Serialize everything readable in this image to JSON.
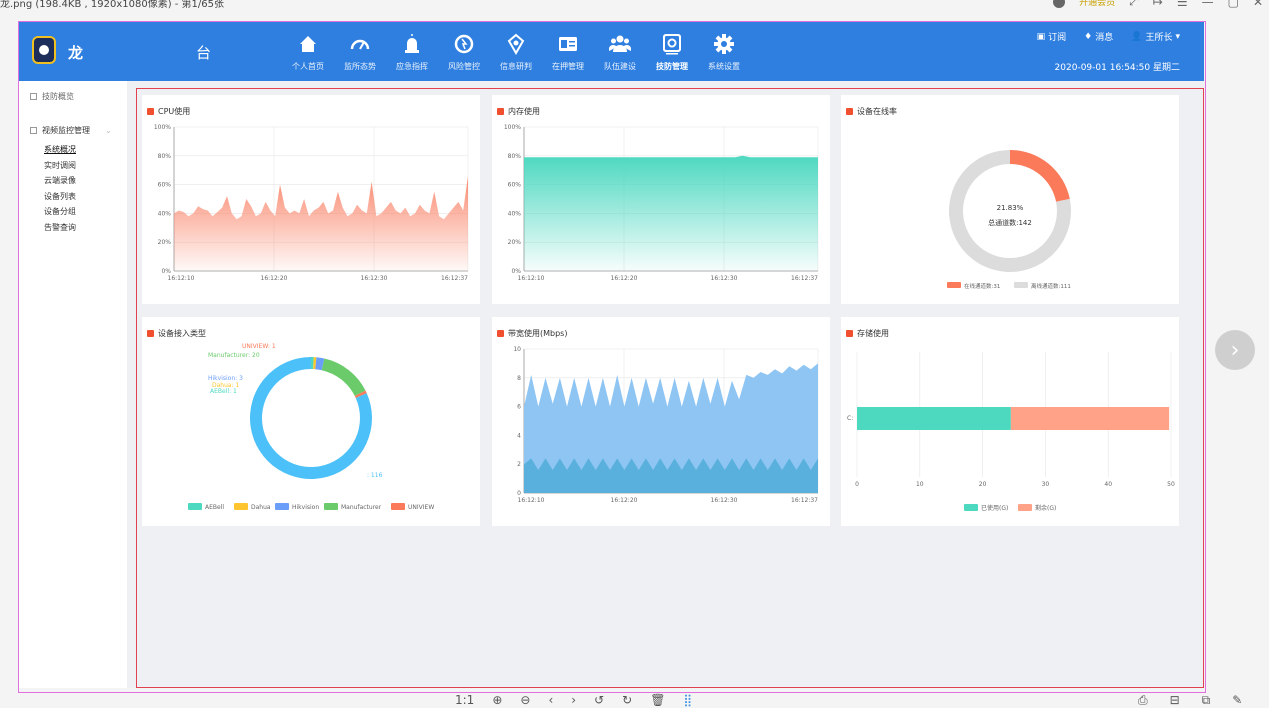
{
  "viewer": {
    "title": "龙.png (198.4KB , 1920x1080像素) - 第1/65张",
    "badge": "开通会员",
    "tr_icons": [
      "⤢",
      "↦",
      "☰",
      "—",
      "▢",
      "✕"
    ],
    "bottom_icons": [
      "1:1",
      "⊕",
      "⊖",
      "‹",
      "›",
      "↺",
      "↻",
      "🗑",
      "⣿"
    ],
    "bottom_right_icons": [
      "⎙",
      "⊟",
      "⧉",
      "✎"
    ],
    "next": "›"
  },
  "app": {
    "brand": "龙",
    "brand_suffix": "台",
    "nav": [
      {
        "label": "个人首页",
        "icon": "home-icon"
      },
      {
        "label": "监所态势",
        "icon": "gauge-icon"
      },
      {
        "label": "应急指挥",
        "icon": "alarm-icon"
      },
      {
        "label": "风险管控",
        "icon": "refresh-icon"
      },
      {
        "label": "信息研判",
        "icon": "gem-icon"
      },
      {
        "label": "在押管理",
        "icon": "id-card-icon"
      },
      {
        "label": "队伍建设",
        "icon": "team-icon"
      },
      {
        "label": "技防管理",
        "icon": "device-icon",
        "active": true
      },
      {
        "label": "系统设置",
        "icon": "gear-icon"
      }
    ],
    "subscribe": "订阅",
    "message": "消息",
    "user": "王所长",
    "datetime": "2020-09-01 16:54:50 星期二"
  },
  "sidebar": {
    "item1": "技防概览",
    "item2": "视频监控管理",
    "sub": [
      "系统概况",
      "实时调阅",
      "云端录像",
      "设备列表",
      "设备分组",
      "告警查询"
    ]
  },
  "cards": {
    "cpu": "CPU使用",
    "mem": "内存使用",
    "online": "设备在线率",
    "access": "设备接入类型",
    "bw": "带宽使用(Mbps)",
    "storage": "存储使用"
  },
  "chart_data": [
    {
      "type": "area",
      "title": "CPU使用",
      "yticks": [
        "100%",
        "80%",
        "60%",
        "40%",
        "20%",
        "0%"
      ],
      "ylim": [
        0,
        100
      ],
      "xticks": [
        "16:12:10",
        "16:12:20",
        "16:12:30",
        "16:12:37"
      ],
      "values": [
        40,
        42,
        41,
        38,
        40,
        45,
        43,
        42,
        38,
        41,
        44,
        52,
        40,
        36,
        38,
        50,
        45,
        38,
        40,
        48,
        42,
        38,
        60,
        44,
        40,
        42,
        40,
        50,
        38,
        42,
        44,
        48,
        40,
        42,
        55,
        44,
        38,
        40,
        46,
        42,
        40,
        62,
        38,
        40,
        44,
        48,
        42,
        40,
        44,
        38,
        40,
        46,
        42,
        40,
        55,
        38,
        36,
        40,
        44,
        48,
        42,
        66
      ],
      "color": "#fa8a70"
    },
    {
      "type": "area",
      "title": "内存使用",
      "yticks": [
        "100%",
        "80%",
        "60%",
        "40%",
        "20%",
        "0%"
      ],
      "ylim": [
        0,
        100
      ],
      "xticks": [
        "16:12:10",
        "16:12:20",
        "16:12:30",
        "16:12:37"
      ],
      "values": [
        79,
        79,
        79,
        79,
        79,
        79,
        79,
        79,
        79,
        79,
        79,
        79,
        79,
        79,
        79,
        79,
        79,
        79,
        79,
        79,
        79,
        79,
        79,
        79,
        79,
        79,
        79,
        79,
        79,
        80,
        79,
        79,
        79,
        79,
        79,
        79,
        79,
        79,
        79,
        79
      ],
      "color": "#4dd8c0"
    },
    {
      "type": "pie",
      "title": "设备在线率",
      "center_pct": "21.83%",
      "center_total": "总通道数:142",
      "slices": [
        {
          "name": "在线通道数:31",
          "value": 31,
          "color": "#fa7a5a"
        },
        {
          "name": "离线通道数:111",
          "value": 111,
          "color": "#dcdcdc"
        }
      ]
    },
    {
      "type": "pie",
      "title": "设备接入类型",
      "slices": [
        {
          "name": "AEBell",
          "value": 1,
          "color": "#4dd8c0",
          "label": "AEBell: 1"
        },
        {
          "name": "Dahua",
          "value": 1,
          "color": "#ffc530",
          "label": "Dahua: 1"
        },
        {
          "name": "Hikvision",
          "value": 3,
          "color": "#6a9ef8",
          "label": "Hikvision: 3"
        },
        {
          "name": "Manufacturer",
          "value": 20,
          "color": "#6bcb6b",
          "label": "Manufacturer: 20"
        },
        {
          "name": "UNIVIEW",
          "value": 1,
          "color": "#fa7a5a",
          "label": "UNIVIEW: 1"
        },
        {
          "name": "",
          "value": 116,
          "color": "#4cc0f8",
          "label": ": 116"
        }
      ]
    },
    {
      "type": "area",
      "title": "带宽使用(Mbps)",
      "yticks": [
        "10",
        "8",
        "6",
        "4",
        "2",
        "0"
      ],
      "ylim": [
        0,
        10
      ],
      "xticks": [
        "16:12:10",
        "16:12:20",
        "16:12:30",
        "16:12:37"
      ],
      "series": [
        {
          "values": [
            6,
            8.2,
            6,
            8,
            6.2,
            8,
            6,
            8,
            6,
            8,
            6,
            8,
            6,
            8.2,
            6,
            8,
            6,
            8,
            6.2,
            8,
            6,
            8,
            6,
            7.8,
            6,
            8,
            6.2,
            8,
            6,
            7.8,
            6.5,
            8.2,
            8,
            8.4,
            8.2,
            8.6,
            8.3,
            8.8,
            8.5,
            8.9,
            8.6,
            9
          ],
          "color": "#8ec5f3"
        },
        {
          "values": [
            2,
            2.4,
            1.6,
            2.4,
            1.6,
            2.4,
            1.6,
            2.4,
            1.6,
            2.4,
            1.6,
            2.4,
            1.6,
            2.4,
            1.6,
            2.4,
            1.6,
            2.4,
            1.6,
            2.4,
            1.6,
            2.4,
            1.6,
            2.4,
            1.6,
            2.4,
            1.6,
            2.4,
            1.6,
            2.4,
            1.6,
            2.4,
            1.6,
            2.4,
            1.6,
            2.4,
            1.6,
            2.4,
            1.6,
            2.4,
            1.6,
            2.4
          ],
          "color": "#5ab0dc"
        }
      ]
    },
    {
      "type": "bar",
      "title": "存储使用",
      "categories": [
        "C:"
      ],
      "xticks": [
        "0",
        "10",
        "20",
        "30",
        "40",
        "50"
      ],
      "xlim": [
        0,
        50
      ],
      "series": [
        {
          "name": "已使用(G)",
          "values": [
            24.5
          ],
          "color": "#4dd8c0"
        },
        {
          "name": "剩余(G)",
          "values": [
            25.2
          ],
          "color": "#ffa288"
        }
      ]
    }
  ]
}
